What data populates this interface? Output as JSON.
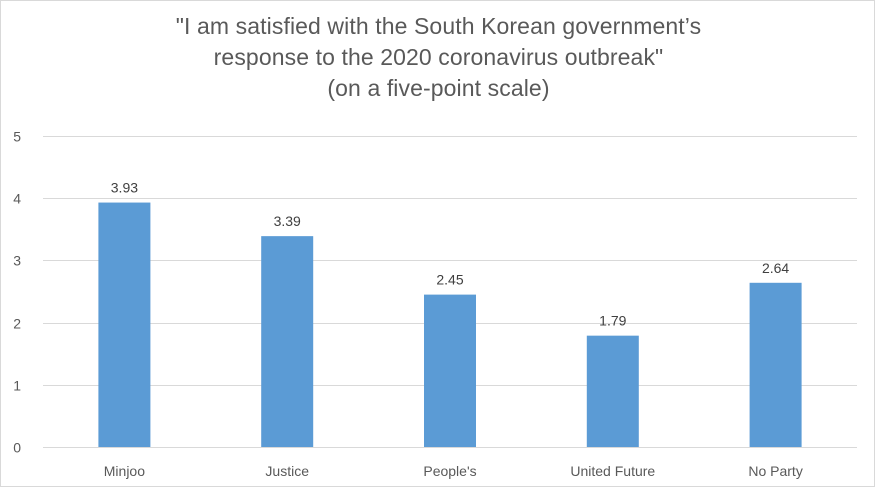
{
  "chart_data": {
    "type": "bar",
    "title_lines": [
      "\"I am satisfied with the South Korean government’s",
      "response to the 2020 coronavirus outbreak\"",
      "(on a five-point scale)"
    ],
    "categories": [
      "Minjoo",
      "Justice",
      "People's",
      "United Future",
      "No Party"
    ],
    "values": [
      3.93,
      3.39,
      2.45,
      1.79,
      2.64
    ],
    "data_labels": [
      "3.93",
      "3.39",
      "2.45",
      "1.79",
      "2.64"
    ],
    "y_ticks": [
      "0",
      "1",
      "2",
      "3",
      "4",
      "5"
    ],
    "ylim": [
      0,
      5
    ],
    "grid": true,
    "legend": "none",
    "bar_color": "#5b9bd5",
    "grid_color": "#d9d9d9",
    "text_color": "#595959"
  }
}
